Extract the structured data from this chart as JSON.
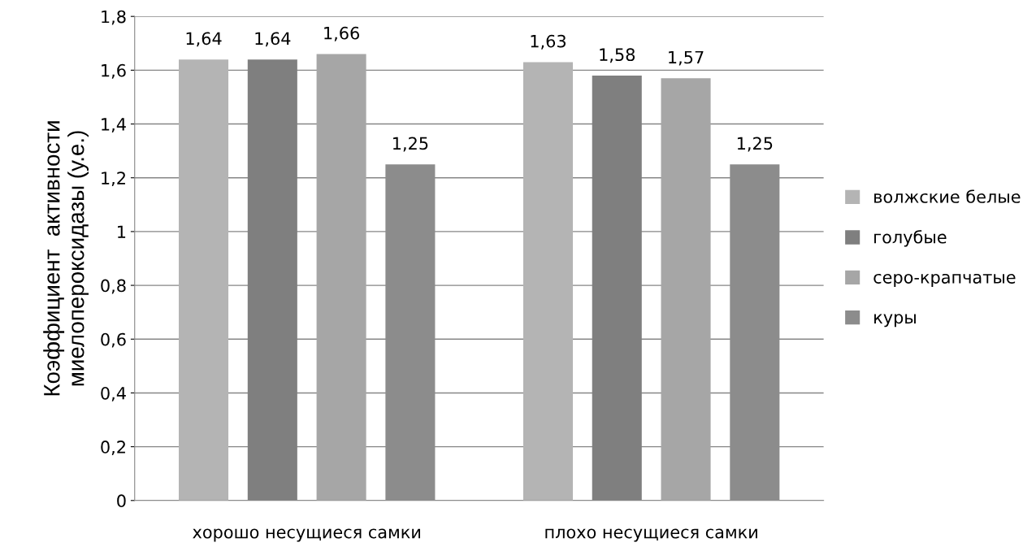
{
  "chart_data": {
    "type": "bar",
    "ylabel": "Коэффициент  активности\nмиелопероксидазы (у.е.)",
    "categories": [
      "хорошо несущиеся самки",
      "плохо несущиеся самки"
    ],
    "series": [
      {
        "name": "волжские белые",
        "color": "#b4b4b4",
        "values": [
          1.64,
          1.63
        ],
        "value_labels": [
          "1,64",
          "1,63"
        ]
      },
      {
        "name": "голубые",
        "color": "#7f7f7f",
        "values": [
          1.64,
          1.58
        ],
        "value_labels": [
          "1,64",
          "1,58"
        ]
      },
      {
        "name": "серо-крапчатые",
        "color": "#a6a6a6",
        "values": [
          1.66,
          1.57
        ],
        "value_labels": [
          "1,66",
          "1,57"
        ]
      },
      {
        "name": "куры",
        "color": "#8c8c8c",
        "values": [
          1.25,
          1.25
        ],
        "value_labels": [
          "1,25",
          "1,25"
        ]
      }
    ],
    "ylim": [
      0,
      1.8
    ],
    "yticks": [
      0,
      {
        "value": 0.2,
        "label": "0,2"
      },
      {
        "value": 0.4,
        "label": "0,4"
      },
      {
        "value": 0.6,
        "label": "0,6"
      },
      {
        "value": 0.8,
        "label": "0,8"
      },
      1,
      {
        "value": 1.2,
        "label": "1,2"
      },
      {
        "value": 1.4,
        "label": "1,4"
      },
      {
        "value": 1.6,
        "label": "1,6"
      },
      {
        "value": 1.8,
        "label": "1,8"
      }
    ],
    "grid": "y",
    "legend": "right"
  }
}
